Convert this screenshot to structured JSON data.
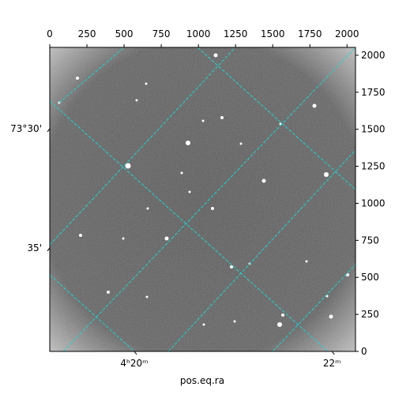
{
  "chart_data": {
    "type": "image",
    "xlabel": "pos.eq.ra",
    "xlim": [
      0,
      2057
    ],
    "xticks": [
      0,
      250,
      500,
      750,
      1000,
      1250,
      1500,
      1750,
      2000
    ],
    "ylim": [
      0,
      2053
    ],
    "yticks": [
      0,
      250,
      500,
      750,
      1000,
      1250,
      1500,
      1750,
      2000
    ],
    "ra_ticks": [
      {
        "value": 569,
        "label": "4ʰ20ᵐ"
      },
      {
        "value": 1899,
        "label": "22ᵐ"
      }
    ],
    "dec_ticks": [
      {
        "value": 1504,
        "label": "73°30'"
      },
      {
        "value": 699,
        "label": "35'"
      }
    ]
  }
}
